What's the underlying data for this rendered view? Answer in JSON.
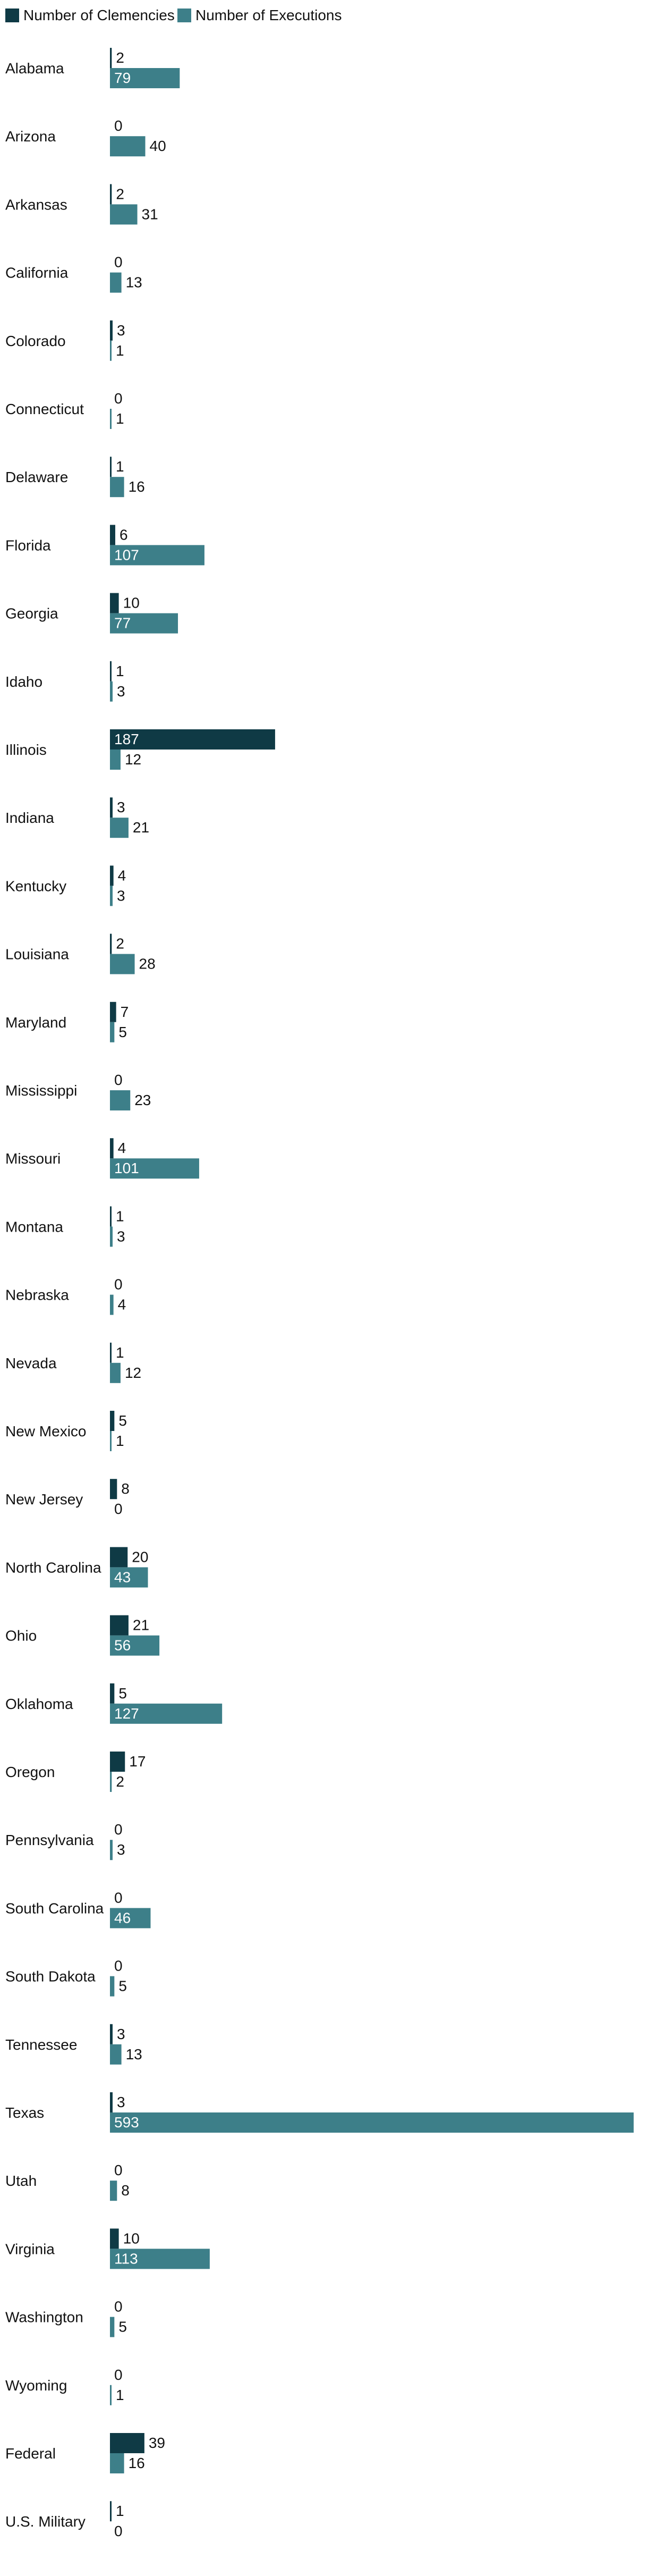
{
  "chart_data": {
    "type": "bar",
    "orientation": "horizontal",
    "legend_position": "top-left",
    "grid": false,
    "categories": [
      "Alabama",
      "Arizona",
      "Arkansas",
      "California",
      "Colorado",
      "Connecticut",
      "Delaware",
      "Florida",
      "Georgia",
      "Idaho",
      "Illinois",
      "Indiana",
      "Kentucky",
      "Louisiana",
      "Maryland",
      "Mississippi",
      "Missouri",
      "Montana",
      "Nebraska",
      "Nevada",
      "New Mexico",
      "New Jersey",
      "North Carolina",
      "Ohio",
      "Oklahoma",
      "Oregon",
      "Pennsylvania",
      "South Carolina",
      "South Dakota",
      "Tennessee",
      "Texas",
      "Utah",
      "Virginia",
      "Washington",
      "Wyoming",
      "Federal",
      "U.S. Military"
    ],
    "series": [
      {
        "name": "Number of Clemencies",
        "color": "#0f3a45",
        "values": [
          2,
          0,
          2,
          0,
          3,
          0,
          1,
          6,
          10,
          1,
          187,
          3,
          4,
          2,
          7,
          0,
          4,
          1,
          0,
          1,
          5,
          8,
          20,
          21,
          5,
          17,
          0,
          0,
          0,
          3,
          3,
          0,
          10,
          0,
          0,
          39,
          1
        ]
      },
      {
        "name": "Number of Executions",
        "color": "#3d7f89",
        "values": [
          79,
          40,
          31,
          13,
          1,
          1,
          16,
          107,
          77,
          3,
          12,
          21,
          3,
          28,
          5,
          23,
          101,
          3,
          4,
          12,
          1,
          0,
          43,
          56,
          127,
          2,
          3,
          46,
          5,
          13,
          593,
          8,
          113,
          5,
          1,
          16,
          0
        ]
      }
    ],
    "xlim": [
      0,
      593
    ]
  }
}
